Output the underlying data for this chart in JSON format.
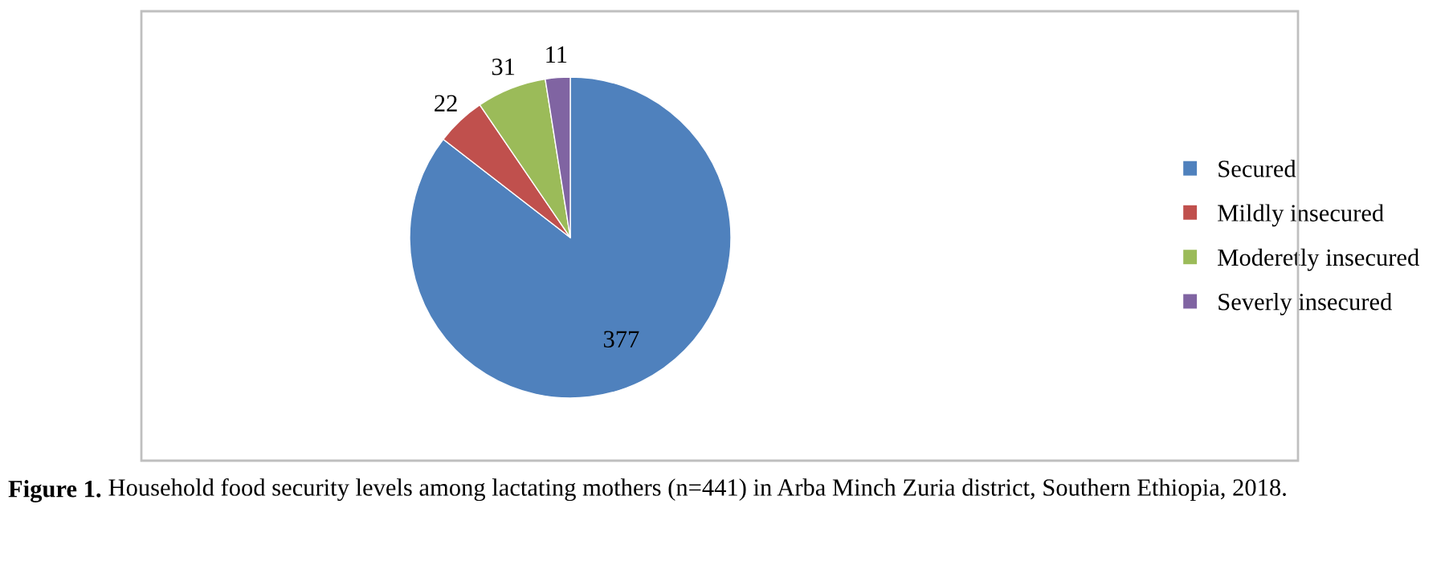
{
  "chart_data": {
    "type": "pie",
    "categories": [
      "Secured",
      "Mildly insecured",
      "Moderetly insecured",
      "Severly insecured"
    ],
    "values": [
      377,
      22,
      31,
      11
    ],
    "colors": [
      "#4f81bd",
      "#c0504d",
      "#9bbb59",
      "#8064a2"
    ],
    "data_labels": true,
    "legend": "right",
    "annotations": [
      "Figure 1.",
      "Household food security levels among lactating mothers (n=441) in Arba Minch Zuria district, Southern Ethiopia, 2018."
    ]
  }
}
